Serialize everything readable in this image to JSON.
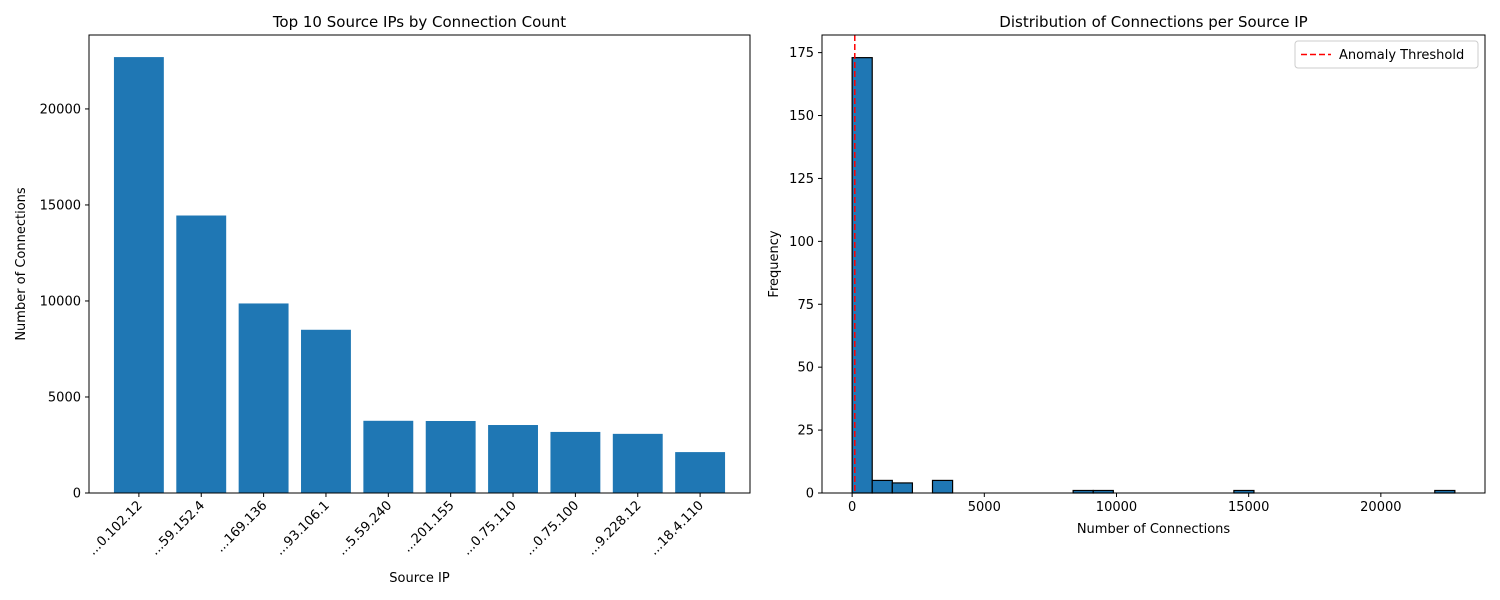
{
  "figure": {
    "background": "#ffffff"
  },
  "chart_data": [
    {
      "type": "bar",
      "title": "Top 10 Source IPs by Connection Count",
      "xlabel": "Source IP",
      "ylabel": "Number of Connections",
      "categories": [
        "...0.102.12",
        "...59.152.4",
        "...169.136",
        "...93.106.1",
        "...5.59.240",
        "...201.155",
        "...0.75.110",
        "...0.75.100",
        "...9.228.12",
        "...18.4.110"
      ],
      "values": [
        22700,
        14450,
        9870,
        8500,
        3760,
        3750,
        3540,
        3180,
        3080,
        2130
      ],
      "ylim": [
        0,
        23850
      ],
      "yticks": [
        0,
        5000,
        10000,
        15000,
        20000
      ],
      "bar_color": "#1f77b4",
      "grid": false
    },
    {
      "type": "histogram",
      "title": "Distribution of Connections per Source IP",
      "xlabel": "Number of Connections",
      "ylabel": "Frequency",
      "bins": [
        {
          "x0": 0,
          "x1": 760,
          "count": 173
        },
        {
          "x0": 760,
          "x1": 1520,
          "count": 5
        },
        {
          "x0": 1520,
          "x1": 2280,
          "count": 4
        },
        {
          "x0": 3040,
          "x1": 3800,
          "count": 5
        },
        {
          "x0": 8360,
          "x1": 9120,
          "count": 1
        },
        {
          "x0": 9120,
          "x1": 9880,
          "count": 1
        },
        {
          "x0": 14440,
          "x1": 15200,
          "count": 1
        },
        {
          "x0": 22040,
          "x1": 22800,
          "count": 1
        }
      ],
      "xlim": [
        -1140,
        23940
      ],
      "ylim": [
        0,
        182
      ],
      "xticks": [
        0,
        5000,
        10000,
        15000,
        20000
      ],
      "yticks": [
        0,
        25,
        50,
        75,
        100,
        125,
        150,
        175
      ],
      "bar_color": "#1f77b4",
      "edge_color": "#000000",
      "threshold": {
        "value": 100,
        "label": "Anomaly Threshold",
        "color": "#ff0000",
        "style": "dashed"
      },
      "legend_placement": "top-right",
      "grid": false
    }
  ]
}
